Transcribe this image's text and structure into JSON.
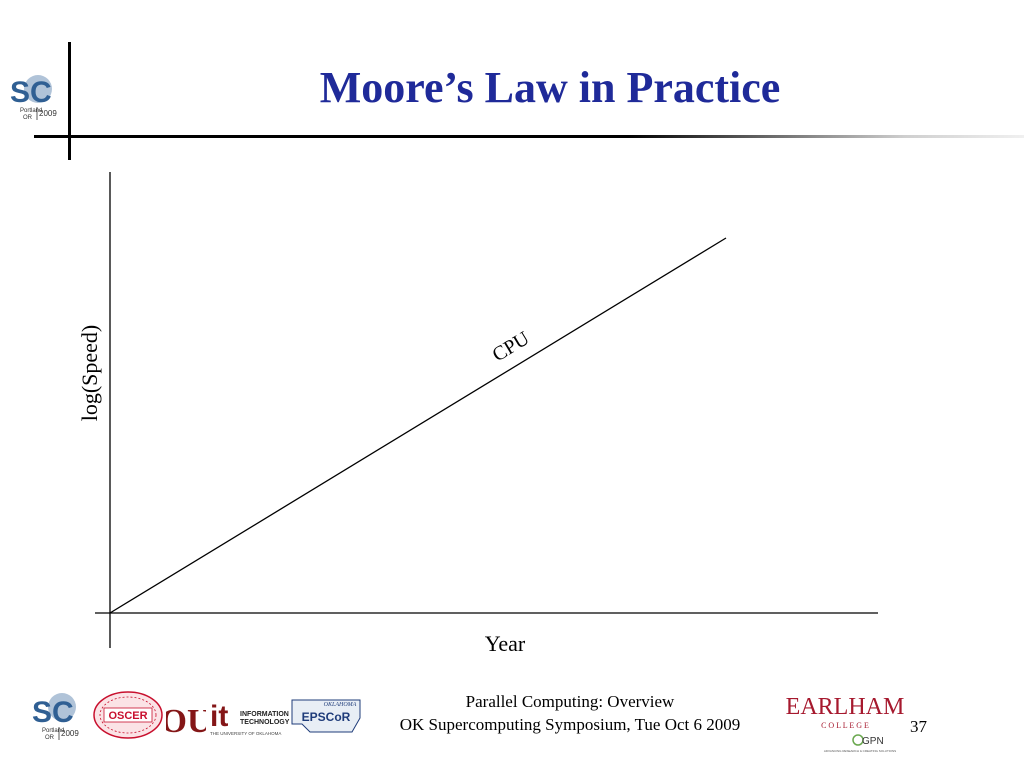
{
  "slide": {
    "title": "Moore’s Law in Practice",
    "page_number": "37"
  },
  "chart_data": {
    "type": "line",
    "title": "",
    "xlabel": "Year",
    "ylabel": "log(Speed)",
    "grid": false,
    "series": [
      {
        "name": "CPU"
      }
    ]
  },
  "footer": {
    "line1": "Parallel Computing: Overview",
    "line2": "OK Supercomputing Symposium, Tue Oct 6 2009"
  },
  "logos": {
    "sc_text": "SC",
    "sc_sub_city": "Portland",
    "sc_sub_state": "OR",
    "sc_year": "2009",
    "oscer_text": "OSCER",
    "ou_text": "OU",
    "it_text": "it",
    "it_line1": "INFORMATION",
    "it_line2": "TECHNOLOGY",
    "it_line3": "THE UNIVERSITY OF OKLAHOMA",
    "epscor_top": "OKLAHOMA",
    "epscor_text": "EPSCoR",
    "earlham_name": "EARLHAM",
    "earlham_sub": "C O L L E G E",
    "gpn_text": "GPN",
    "gpn_tag": "ADVANCING RESEARCH & CREATING SOLUTIONS"
  },
  "colors": {
    "title": "#1f2a99",
    "sc_blue": "#2f5f93",
    "oscer_red": "#c8102e",
    "ou_crimson": "#841617",
    "earlham_red": "#a6192e",
    "gpn_green": "#6aa84f"
  }
}
